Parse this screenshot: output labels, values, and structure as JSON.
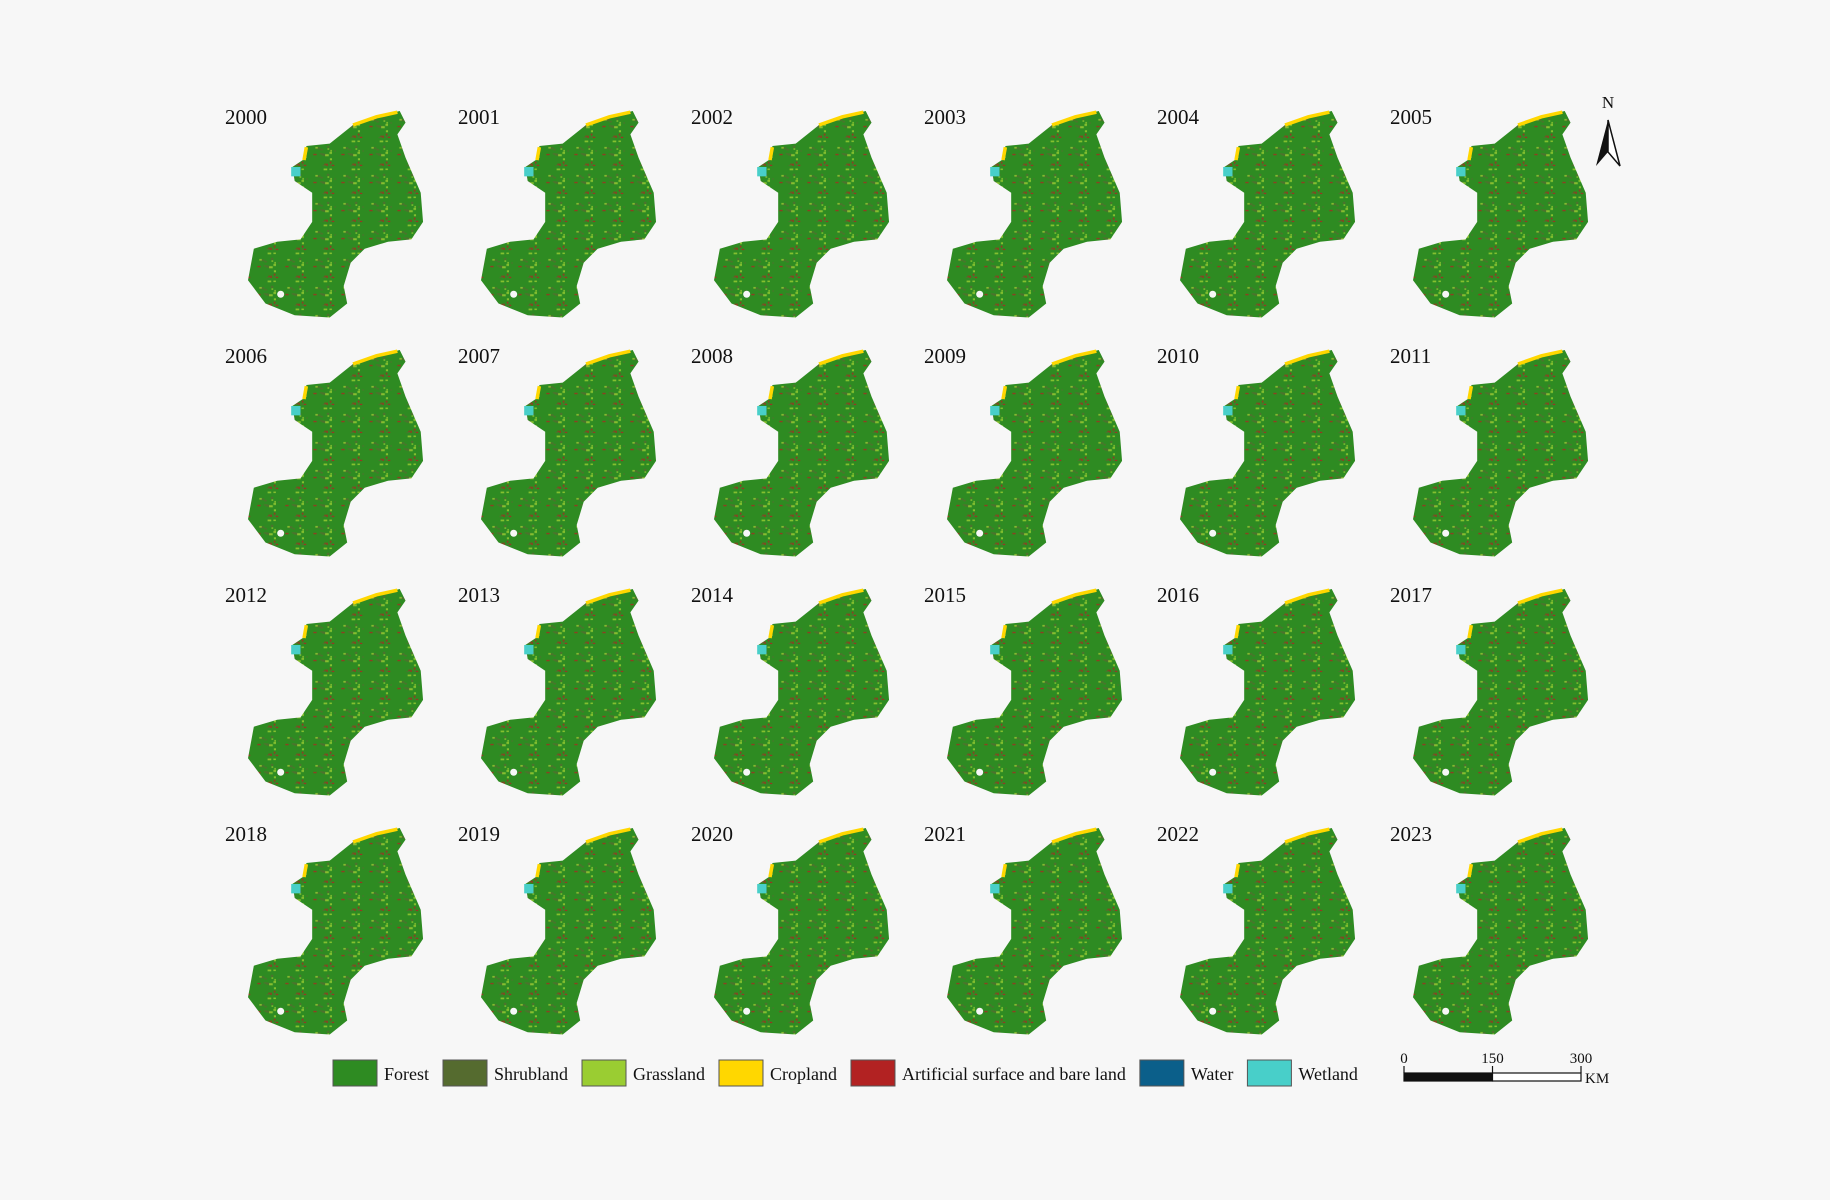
{
  "maps": [
    {
      "year": "2000"
    },
    {
      "year": "2001"
    },
    {
      "year": "2002"
    },
    {
      "year": "2003"
    },
    {
      "year": "2004"
    },
    {
      "year": "2005"
    },
    {
      "year": "2006"
    },
    {
      "year": "2007"
    },
    {
      "year": "2008"
    },
    {
      "year": "2009"
    },
    {
      "year": "2010"
    },
    {
      "year": "2011"
    },
    {
      "year": "2012"
    },
    {
      "year": "2013"
    },
    {
      "year": "2014"
    },
    {
      "year": "2015"
    },
    {
      "year": "2016"
    },
    {
      "year": "2017"
    },
    {
      "year": "2018"
    },
    {
      "year": "2019"
    },
    {
      "year": "2020"
    },
    {
      "year": "2021"
    },
    {
      "year": "2022"
    },
    {
      "year": "2023"
    }
  ],
  "legend": [
    {
      "label": "Forest",
      "color": "#2e8b22"
    },
    {
      "label": "Shrubland",
      "color": "#556b2f"
    },
    {
      "label": "Grassland",
      "color": "#9acd32"
    },
    {
      "label": "Cropland",
      "color": "#ffd700"
    },
    {
      "label": "Artificial surface and bare land",
      "color": "#b22222"
    },
    {
      "label": "Water",
      "color": "#0b5f8a"
    },
    {
      "label": "Wetland",
      "color": "#48cfc9"
    }
  ],
  "scale_bar": {
    "ticks": [
      0,
      150,
      300
    ],
    "unit": "KM"
  },
  "north_arrow": "N"
}
